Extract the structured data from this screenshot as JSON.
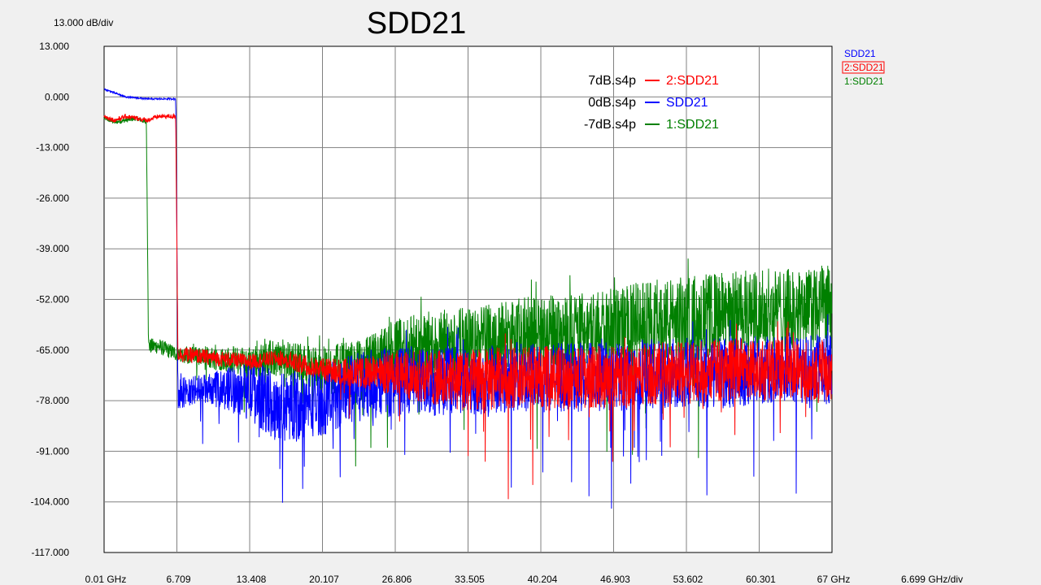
{
  "chart_data": {
    "type": "line",
    "title": "SDD21",
    "y_scale_label": "13.000 dB/div",
    "x_scale_label": "6.699 GHz/div",
    "xlim": [
      0.01,
      67
    ],
    "ylim": [
      -117,
      13
    ],
    "grid": true,
    "y_ticks": [
      {
        "value": 13,
        "label": "13.000"
      },
      {
        "value": 0,
        "label": "0.000"
      },
      {
        "value": -13,
        "label": "-13.000"
      },
      {
        "value": -26,
        "label": "-26.000"
      },
      {
        "value": -39,
        "label": "-39.000"
      },
      {
        "value": -52,
        "label": "-52.000"
      },
      {
        "value": -65,
        "label": "-65.000"
      },
      {
        "value": -78,
        "label": "-78.000"
      },
      {
        "value": -91,
        "label": "-91.000"
      },
      {
        "value": -104,
        "label": "-104.000"
      },
      {
        "value": -117,
        "label": "-117.000"
      }
    ],
    "x_ticks": [
      {
        "value": 0.01,
        "label": "0.01 GHz"
      },
      {
        "value": 6.709,
        "label": "6.709"
      },
      {
        "value": 13.408,
        "label": "13.408"
      },
      {
        "value": 20.107,
        "label": "20.107"
      },
      {
        "value": 26.806,
        "label": "26.806"
      },
      {
        "value": 33.505,
        "label": "33.505"
      },
      {
        "value": 40.204,
        "label": "40.204"
      },
      {
        "value": 46.903,
        "label": "46.903"
      },
      {
        "value": 53.602,
        "label": "53.602"
      },
      {
        "value": 60.301,
        "label": "60.301"
      },
      {
        "value": 67,
        "label": "67 GHz"
      }
    ],
    "legend": {
      "placement": "top-right",
      "items": [
        {
          "file": "7dB.s4p",
          "name": "2:SDD21",
          "color": "#ff0000"
        },
        {
          "file": "0dB.s4p",
          "name": "SDD21",
          "color": "#0000ff"
        },
        {
          "file": "-7dB.s4p",
          "name": "1:SDD21",
          "color": "#008000"
        }
      ]
    },
    "trace_list": [
      {
        "name": "SDD21",
        "color": "#0000ff",
        "selected": false
      },
      {
        "name": "2:SDD21",
        "color": "#ff0000",
        "selected": true
      },
      {
        "name": "1:SDD21",
        "color": "#008000",
        "selected": false
      }
    ],
    "series": [
      {
        "name": "1:SDD21",
        "color": "#008000",
        "x": [
          0.01,
          1,
          2,
          3,
          3.9,
          4.0,
          4.1,
          5,
          6.7,
          10,
          13.4,
          16,
          20.1,
          24,
          26.8,
          30,
          33.5,
          37,
          40.2,
          43,
          46.9,
          50,
          53.6,
          57,
          60.3,
          64,
          67
        ],
        "y": [
          -5.5,
          -6.5,
          -6,
          -5.5,
          -6.5,
          -35,
          -64,
          -64,
          -66,
          -67,
          -68,
          -67,
          -70,
          -70,
          -66,
          -64,
          -63,
          -62,
          -61,
          -60,
          -59,
          -58,
          -57,
          -56,
          -55,
          -55,
          -54
        ],
        "spread": [
          0.5,
          0.6,
          0.6,
          0.6,
          0.6,
          0,
          2,
          2,
          2,
          3,
          4,
          5,
          6,
          8,
          9,
          9,
          9,
          10,
          10,
          10,
          10,
          11,
          11,
          11,
          11,
          11,
          11
        ]
      },
      {
        "name": "SDD21",
        "color": "#0000ff",
        "x": [
          0.01,
          1,
          2,
          4,
          6.6,
          6.7,
          6.8,
          10,
          13.4,
          16,
          20.1,
          24,
          26.8,
          30,
          33.5,
          37,
          40.2,
          43,
          46.9,
          50,
          53.6,
          57,
          60.3,
          64,
          67
        ],
        "y": [
          2,
          1,
          0,
          -0.5,
          -0.5,
          -30,
          -76,
          -75,
          -75,
          -80,
          -78,
          -74,
          -73,
          -73,
          -73,
          -72,
          -72,
          -72,
          -72,
          -71,
          -71,
          -71,
          -70,
          -70,
          -70
        ],
        "spread": [
          0.2,
          0.2,
          0.2,
          0.2,
          0.2,
          0,
          4,
          4,
          8,
          9,
          9,
          9,
          9,
          9,
          9,
          9,
          9,
          9,
          9,
          9,
          9,
          9,
          9,
          9,
          9
        ]
      },
      {
        "name": "2:SDD21",
        "color": "#ff0000",
        "x": [
          0.01,
          1,
          2,
          3,
          4,
          5,
          6.6,
          6.7,
          6.8,
          10,
          13.4,
          16,
          20.1,
          24,
          26.8,
          30,
          33.5,
          37,
          40.2,
          43,
          46.9,
          50,
          53.6,
          57,
          60.3,
          64,
          67
        ],
        "y": [
          -5,
          -6,
          -5,
          -5.5,
          -6,
          -5,
          -5,
          -35,
          -66,
          -67,
          -68,
          -67,
          -70,
          -71,
          -71,
          -72,
          -73,
          -72,
          -72,
          -72,
          -72,
          -71,
          -71,
          -70,
          -70,
          -70,
          -70
        ],
        "spread": [
          0.5,
          0.6,
          0.6,
          0.6,
          0.6,
          0.6,
          0.6,
          0,
          2,
          2,
          2,
          2,
          3,
          4,
          6,
          7,
          8,
          8,
          8,
          8,
          8,
          8,
          8,
          8,
          8,
          8,
          8
        ]
      }
    ]
  }
}
